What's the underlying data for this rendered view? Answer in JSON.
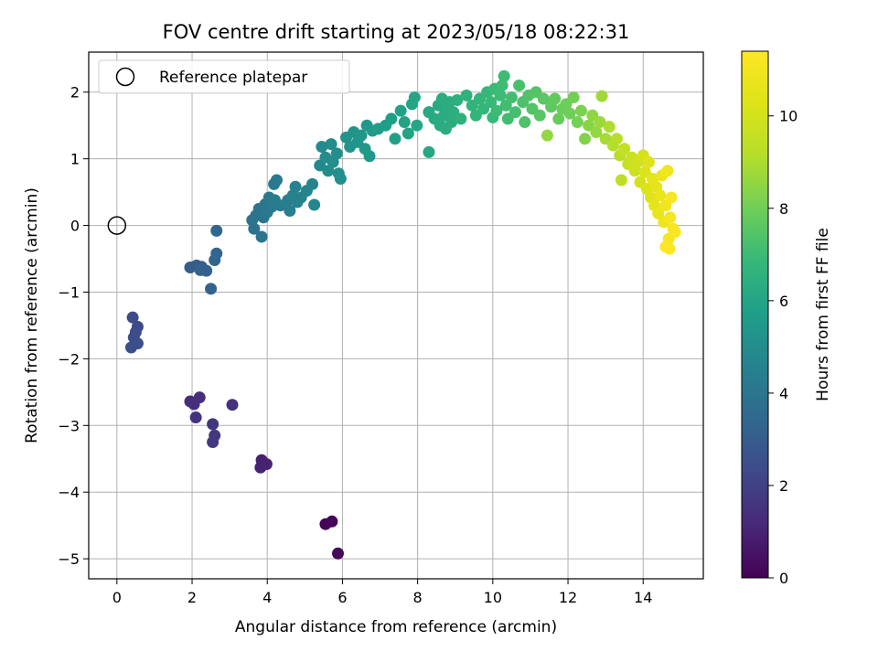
{
  "chart_data": {
    "type": "scatter",
    "title": "FOV centre drift starting at 2023/05/18 08:22:31",
    "xlabel": "Angular distance from reference (arcmin)",
    "ylabel": "Rotation from reference (arcmin)",
    "xlim": [
      -0.75,
      15.6
    ],
    "ylim": [
      -5.3,
      2.6
    ],
    "xticks": [
      0,
      2,
      4,
      6,
      8,
      10,
      12,
      14
    ],
    "xtick_labels": [
      "0",
      "2",
      "4",
      "6",
      "8",
      "10",
      "12",
      "14"
    ],
    "yticks": [
      -5,
      -4,
      -3,
      -2,
      -1,
      0,
      1,
      2
    ],
    "ytick_labels": [
      "−5",
      "−4",
      "−3",
      "−2",
      "−1",
      "0",
      "1",
      "2"
    ],
    "grid": true,
    "colormap": "viridis",
    "colorbar": {
      "label": "Hours from first FF file",
      "range": [
        0,
        11.4
      ],
      "ticks": [
        0,
        2,
        4,
        6,
        8,
        10
      ],
      "tick_labels": [
        "0",
        "2",
        "4",
        "6",
        "8",
        "10"
      ]
    },
    "legend": {
      "placement": "top-left",
      "entries": [
        {
          "label": "Reference platepar",
          "marker": "open-circle"
        }
      ]
    },
    "reference_point": {
      "x": 0,
      "y": 0
    },
    "points": [
      {
        "x": 5.55,
        "y": -4.48,
        "c": 0.1
      },
      {
        "x": 5.72,
        "y": -4.44,
        "c": 0.15
      },
      {
        "x": 5.88,
        "y": -4.92,
        "c": 0.2
      },
      {
        "x": 3.85,
        "y": -3.52,
        "c": 0.9
      },
      {
        "x": 3.82,
        "y": -3.63,
        "c": 0.95
      },
      {
        "x": 3.98,
        "y": -3.58,
        "c": 1.0
      },
      {
        "x": 1.95,
        "y": -2.64,
        "c": 1.3
      },
      {
        "x": 2.05,
        "y": -2.68,
        "c": 1.35
      },
      {
        "x": 2.2,
        "y": -2.58,
        "c": 1.4
      },
      {
        "x": 2.1,
        "y": -2.88,
        "c": 1.45
      },
      {
        "x": 3.07,
        "y": -2.69,
        "c": 1.5
      },
      {
        "x": 2.55,
        "y": -2.98,
        "c": 1.6
      },
      {
        "x": 2.6,
        "y": -3.15,
        "c": 1.65
      },
      {
        "x": 2.55,
        "y": -3.25,
        "c": 1.7
      },
      {
        "x": 0.42,
        "y": -1.38,
        "c": 2.3
      },
      {
        "x": 0.55,
        "y": -1.52,
        "c": 2.35
      },
      {
        "x": 0.5,
        "y": -1.6,
        "c": 2.4
      },
      {
        "x": 0.45,
        "y": -1.68,
        "c": 2.45
      },
      {
        "x": 0.55,
        "y": -1.77,
        "c": 2.5
      },
      {
        "x": 0.38,
        "y": -1.83,
        "c": 2.55
      },
      {
        "x": 1.95,
        "y": -0.63,
        "c": 3.0
      },
      {
        "x": 2.12,
        "y": -0.6,
        "c": 3.05
      },
      {
        "x": 2.25,
        "y": -0.62,
        "c": 3.1
      },
      {
        "x": 2.38,
        "y": -0.68,
        "c": 3.15
      },
      {
        "x": 2.22,
        "y": -0.67,
        "c": 3.2
      },
      {
        "x": 2.5,
        "y": -0.95,
        "c": 3.25
      },
      {
        "x": 2.6,
        "y": -0.52,
        "c": 3.3
      },
      {
        "x": 2.65,
        "y": -0.42,
        "c": 3.35
      },
      {
        "x": 2.65,
        "y": -0.08,
        "c": 3.4
      },
      {
        "x": 3.6,
        "y": 0.08,
        "c": 3.8
      },
      {
        "x": 3.65,
        "y": -0.05,
        "c": 3.85
      },
      {
        "x": 3.7,
        "y": 0.15,
        "c": 3.9
      },
      {
        "x": 3.78,
        "y": 0.25,
        "c": 3.95
      },
      {
        "x": 3.85,
        "y": -0.17,
        "c": 4.0
      },
      {
        "x": 3.9,
        "y": 0.12,
        "c": 4.0
      },
      {
        "x": 3.95,
        "y": 0.32,
        "c": 4.05
      },
      {
        "x": 4.0,
        "y": 0.2,
        "c": 4.1
      },
      {
        "x": 4.05,
        "y": 0.42,
        "c": 4.1
      },
      {
        "x": 4.12,
        "y": 0.28,
        "c": 4.15
      },
      {
        "x": 4.18,
        "y": 0.62,
        "c": 4.2
      },
      {
        "x": 4.25,
        "y": 0.68,
        "c": 4.2
      },
      {
        "x": 4.2,
        "y": 0.38,
        "c": 4.25
      },
      {
        "x": 4.35,
        "y": 0.3,
        "c": 4.3
      },
      {
        "x": 4.55,
        "y": 0.38,
        "c": 4.4
      },
      {
        "x": 4.6,
        "y": 0.22,
        "c": 4.45
      },
      {
        "x": 4.68,
        "y": 0.45,
        "c": 4.5
      },
      {
        "x": 4.75,
        "y": 0.58,
        "c": 4.5
      },
      {
        "x": 4.8,
        "y": 0.35,
        "c": 4.55
      },
      {
        "x": 4.9,
        "y": 0.42,
        "c": 4.6
      },
      {
        "x": 5.05,
        "y": 0.52,
        "c": 4.65
      },
      {
        "x": 5.2,
        "y": 0.62,
        "c": 4.7
      },
      {
        "x": 5.25,
        "y": 0.31,
        "c": 4.75
      },
      {
        "x": 5.4,
        "y": 0.9,
        "c": 4.85
      },
      {
        "x": 5.45,
        "y": 1.18,
        "c": 4.9
      },
      {
        "x": 5.55,
        "y": 1.02,
        "c": 4.95
      },
      {
        "x": 5.62,
        "y": 0.82,
        "c": 5.0
      },
      {
        "x": 5.7,
        "y": 1.22,
        "c": 5.0
      },
      {
        "x": 5.75,
        "y": 0.95,
        "c": 5.05
      },
      {
        "x": 5.85,
        "y": 1.08,
        "c": 5.1
      },
      {
        "x": 5.9,
        "y": 0.78,
        "c": 5.1
      },
      {
        "x": 5.95,
        "y": 0.7,
        "c": 5.15
      },
      {
        "x": 6.1,
        "y": 1.32,
        "c": 5.2
      },
      {
        "x": 6.2,
        "y": 1.18,
        "c": 5.25
      },
      {
        "x": 6.3,
        "y": 1.4,
        "c": 5.3
      },
      {
        "x": 6.4,
        "y": 1.25,
        "c": 5.35
      },
      {
        "x": 6.5,
        "y": 1.35,
        "c": 5.4
      },
      {
        "x": 6.6,
        "y": 1.15,
        "c": 5.45
      },
      {
        "x": 6.65,
        "y": 1.5,
        "c": 5.5
      },
      {
        "x": 6.72,
        "y": 1.04,
        "c": 5.5
      },
      {
        "x": 6.8,
        "y": 1.42,
        "c": 5.55
      },
      {
        "x": 6.95,
        "y": 1.45,
        "c": 5.6
      },
      {
        "x": 7.15,
        "y": 1.5,
        "c": 5.7
      },
      {
        "x": 7.3,
        "y": 1.6,
        "c": 5.75
      },
      {
        "x": 7.4,
        "y": 1.3,
        "c": 5.8
      },
      {
        "x": 7.55,
        "y": 1.72,
        "c": 5.85
      },
      {
        "x": 7.65,
        "y": 1.55,
        "c": 5.9
      },
      {
        "x": 7.75,
        "y": 1.38,
        "c": 5.95
      },
      {
        "x": 7.85,
        "y": 1.82,
        "c": 6.0
      },
      {
        "x": 7.92,
        "y": 1.92,
        "c": 6.0
      },
      {
        "x": 7.98,
        "y": 1.5,
        "c": 6.05
      },
      {
        "x": 8.3,
        "y": 1.1,
        "c": 6.1
      },
      {
        "x": 8.3,
        "y": 1.7,
        "c": 6.15
      },
      {
        "x": 8.45,
        "y": 1.6,
        "c": 6.2
      },
      {
        "x": 8.55,
        "y": 1.8,
        "c": 6.2
      },
      {
        "x": 8.6,
        "y": 1.5,
        "c": 6.25
      },
      {
        "x": 8.65,
        "y": 1.9,
        "c": 6.3
      },
      {
        "x": 8.7,
        "y": 1.65,
        "c": 6.3
      },
      {
        "x": 8.75,
        "y": 1.45,
        "c": 6.35
      },
      {
        "x": 8.8,
        "y": 1.75,
        "c": 6.35
      },
      {
        "x": 8.85,
        "y": 1.85,
        "c": 6.4
      },
      {
        "x": 8.9,
        "y": 1.55,
        "c": 6.4
      },
      {
        "x": 8.95,
        "y": 1.7,
        "c": 6.45
      },
      {
        "x": 9.05,
        "y": 1.88,
        "c": 6.5
      },
      {
        "x": 9.15,
        "y": 1.6,
        "c": 6.55
      },
      {
        "x": 9.3,
        "y": 1.95,
        "c": 6.6
      },
      {
        "x": 9.45,
        "y": 1.8,
        "c": 6.65
      },
      {
        "x": 9.55,
        "y": 1.65,
        "c": 6.7
      },
      {
        "x": 9.65,
        "y": 1.9,
        "c": 6.75
      },
      {
        "x": 9.75,
        "y": 1.75,
        "c": 6.8
      },
      {
        "x": 9.85,
        "y": 2.0,
        "c": 6.85
      },
      {
        "x": 9.95,
        "y": 1.85,
        "c": 6.9
      },
      {
        "x": 10.0,
        "y": 1.62,
        "c": 6.9
      },
      {
        "x": 10.05,
        "y": 2.05,
        "c": 6.95
      },
      {
        "x": 10.1,
        "y": 1.72,
        "c": 7.0
      },
      {
        "x": 10.2,
        "y": 1.95,
        "c": 7.0
      },
      {
        "x": 10.25,
        "y": 2.1,
        "c": 7.05
      },
      {
        "x": 10.3,
        "y": 2.24,
        "c": 7.05
      },
      {
        "x": 10.35,
        "y": 1.8,
        "c": 7.1
      },
      {
        "x": 10.4,
        "y": 1.6,
        "c": 7.1
      },
      {
        "x": 10.5,
        "y": 1.92,
        "c": 7.15
      },
      {
        "x": 10.6,
        "y": 1.7,
        "c": 7.2
      },
      {
        "x": 10.7,
        "y": 2.1,
        "c": 7.25
      },
      {
        "x": 10.8,
        "y": 1.85,
        "c": 7.3
      },
      {
        "x": 10.85,
        "y": 1.55,
        "c": 7.35
      },
      {
        "x": 10.95,
        "y": 1.95,
        "c": 7.4
      },
      {
        "x": 11.05,
        "y": 1.75,
        "c": 7.45
      },
      {
        "x": 11.15,
        "y": 2.0,
        "c": 7.5
      },
      {
        "x": 11.25,
        "y": 1.65,
        "c": 7.55
      },
      {
        "x": 11.35,
        "y": 1.9,
        "c": 7.6
      },
      {
        "x": 11.45,
        "y": 1.35,
        "c": 8.6
      },
      {
        "x": 11.55,
        "y": 1.78,
        "c": 7.7
      },
      {
        "x": 11.65,
        "y": 1.9,
        "c": 7.75
      },
      {
        "x": 11.75,
        "y": 1.6,
        "c": 7.85
      },
      {
        "x": 11.85,
        "y": 1.75,
        "c": 7.9
      },
      {
        "x": 11.95,
        "y": 1.82,
        "c": 7.95
      },
      {
        "x": 12.05,
        "y": 1.68,
        "c": 8.0
      },
      {
        "x": 12.15,
        "y": 1.92,
        "c": 8.05
      },
      {
        "x": 12.25,
        "y": 1.55,
        "c": 8.1
      },
      {
        "x": 12.35,
        "y": 1.72,
        "c": 8.2
      },
      {
        "x": 12.45,
        "y": 1.3,
        "c": 8.3
      },
      {
        "x": 12.55,
        "y": 1.5,
        "c": 8.4
      },
      {
        "x": 12.65,
        "y": 1.65,
        "c": 8.5
      },
      {
        "x": 12.75,
        "y": 1.4,
        "c": 8.6
      },
      {
        "x": 12.85,
        "y": 1.55,
        "c": 8.7
      },
      {
        "x": 12.9,
        "y": 1.94,
        "c": 8.8
      },
      {
        "x": 13.0,
        "y": 1.3,
        "c": 8.9
      },
      {
        "x": 13.1,
        "y": 1.48,
        "c": 9.0
      },
      {
        "x": 13.2,
        "y": 1.2,
        "c": 9.1
      },
      {
        "x": 13.3,
        "y": 1.3,
        "c": 9.2
      },
      {
        "x": 13.38,
        "y": 1.05,
        "c": 9.3
      },
      {
        "x": 13.42,
        "y": 0.68,
        "c": 9.4
      },
      {
        "x": 13.5,
        "y": 1.15,
        "c": 9.5
      },
      {
        "x": 13.6,
        "y": 0.92,
        "c": 9.6
      },
      {
        "x": 13.7,
        "y": 1.02,
        "c": 9.7
      },
      {
        "x": 13.78,
        "y": 0.82,
        "c": 9.8
      },
      {
        "x": 13.85,
        "y": 0.95,
        "c": 9.9
      },
      {
        "x": 13.92,
        "y": 0.65,
        "c": 10.0
      },
      {
        "x": 14.0,
        "y": 1.05,
        "c": 10.1
      },
      {
        "x": 14.05,
        "y": 0.8,
        "c": 10.2
      },
      {
        "x": 14.1,
        "y": 0.55,
        "c": 10.3
      },
      {
        "x": 14.15,
        "y": 0.95,
        "c": 10.35
      },
      {
        "x": 14.2,
        "y": 0.42,
        "c": 10.4
      },
      {
        "x": 14.25,
        "y": 0.7,
        "c": 10.5
      },
      {
        "x": 14.3,
        "y": 0.3,
        "c": 10.55
      },
      {
        "x": 14.35,
        "y": 0.58,
        "c": 10.6
      },
      {
        "x": 14.4,
        "y": 0.18,
        "c": 10.7
      },
      {
        "x": 14.45,
        "y": 0.45,
        "c": 10.75
      },
      {
        "x": 14.5,
        "y": 0.75,
        "c": 10.8
      },
      {
        "x": 14.55,
        "y": 0.05,
        "c": 10.9
      },
      {
        "x": 14.6,
        "y": 0.3,
        "c": 10.95
      },
      {
        "x": 14.65,
        "y": 0.82,
        "c": 11.0
      },
      {
        "x": 14.68,
        "y": -0.2,
        "c": 11.1
      },
      {
        "x": 14.72,
        "y": 0.12,
        "c": 11.15
      },
      {
        "x": 14.75,
        "y": 0.42,
        "c": 11.2
      },
      {
        "x": 14.8,
        "y": -0.05,
        "c": 11.25
      },
      {
        "x": 14.85,
        "y": -0.1,
        "c": 11.3
      },
      {
        "x": 14.7,
        "y": -0.35,
        "c": 11.35
      },
      {
        "x": 14.6,
        "y": -0.32,
        "c": 11.4
      }
    ]
  }
}
